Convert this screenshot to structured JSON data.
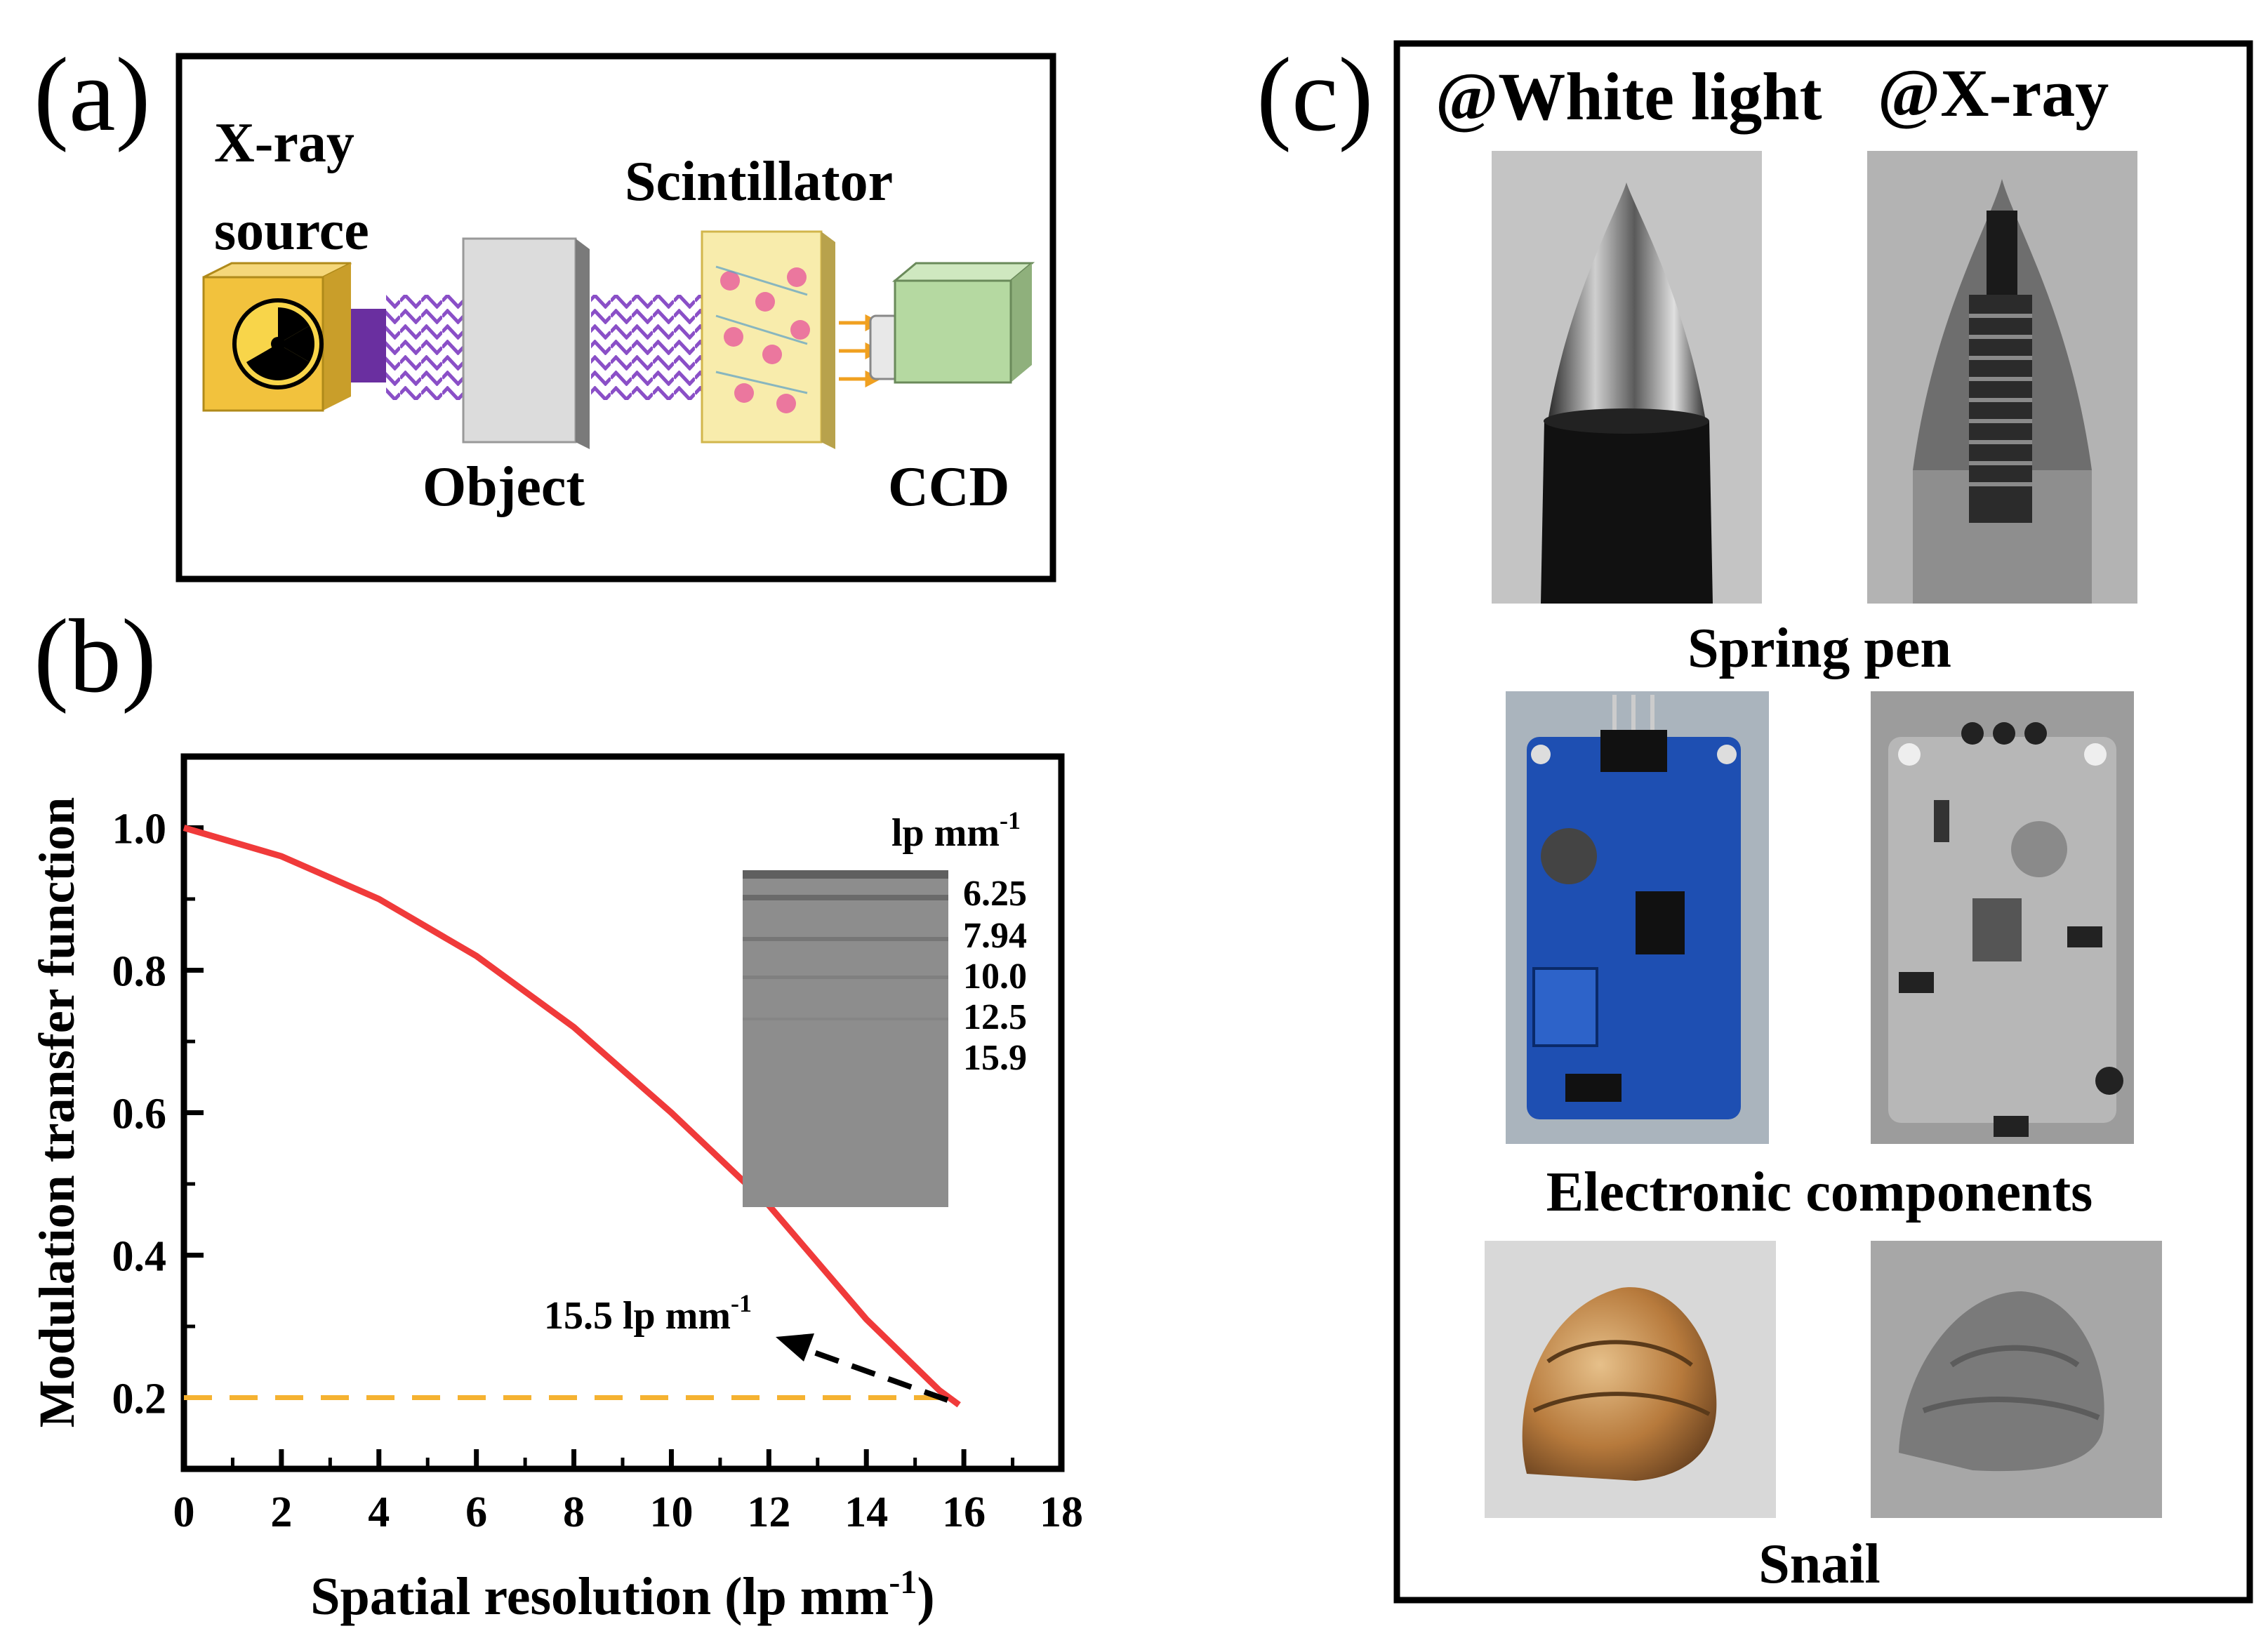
{
  "panel_a": {
    "label": "(a)",
    "source_label_1": "X-ray",
    "source_label_2": "source",
    "scintillator_label": "Scintillator",
    "object_label": "Object",
    "ccd_label": "CCD"
  },
  "panel_b": {
    "label": "(b)",
    "inset": {
      "unit_prefix": "lp mm",
      "unit_sup": "-1",
      "values": [
        "6.25",
        "7.94",
        "10.0",
        "12.5",
        "15.9"
      ]
    },
    "annotation": {
      "text": "15.5 lp mm",
      "sup": "-1"
    }
  },
  "chart_data": {
    "type": "line",
    "title": "",
    "xlabel": "Spatial resolution (lp mm",
    "xlabel_sup": "-1",
    "xlabel_suffix": ")",
    "ylabel": "Modulation transfer function",
    "xlim": [
      0,
      18
    ],
    "ylim": [
      0.1,
      1.1
    ],
    "xticks": [
      0,
      2,
      4,
      6,
      8,
      10,
      12,
      14,
      16,
      18
    ],
    "yticks": [
      0.2,
      0.4,
      0.6,
      0.8,
      1.0
    ],
    "xtick_labels": [
      "0",
      "2",
      "4",
      "6",
      "8",
      "10",
      "12",
      "14",
      "16",
      "18"
    ],
    "ytick_labels": [
      "0.2",
      "0.4",
      "0.6",
      "0.8",
      "1.0"
    ],
    "series": [
      {
        "name": "MTF",
        "color": "#f03a3a",
        "x": [
          0,
          2,
          4,
          6,
          8,
          10,
          12,
          14,
          15.5,
          15.9
        ],
        "y": [
          1.0,
          0.96,
          0.9,
          0.82,
          0.72,
          0.6,
          0.47,
          0.31,
          0.21,
          0.19
        ]
      }
    ],
    "reference_line": {
      "y": 0.2,
      "x_range": [
        0,
        15.8
      ],
      "color": "#f5b231",
      "style": "dashed"
    }
  },
  "panel_c": {
    "label": "(c)",
    "header_white": "@White light",
    "header_xray": "@X-ray",
    "row_labels": [
      "Spring pen",
      "Electronic components",
      "Snail"
    ]
  }
}
